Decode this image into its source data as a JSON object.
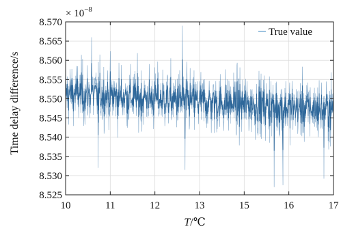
{
  "chart_data": {
    "type": "line",
    "ylabel": "Time delay difference/s",
    "xlabel_italic": "T",
    "xlabel_unit": "/℃",
    "y_multiplier_prefix": "× 10",
    "y_multiplier_exponent": "−8",
    "y_scale": 1e-08,
    "x_tick_labels": [
      "10",
      "11",
      "12",
      "13",
      "15",
      "16",
      "17"
    ],
    "xlim": [
      10,
      17
    ],
    "ylim": [
      8.525,
      8.57
    ],
    "y_ticks": [
      8.525,
      8.53,
      8.535,
      8.54,
      8.545,
      8.55,
      8.555,
      8.56,
      8.565,
      8.57
    ],
    "y_tick_labels": [
      "8.525",
      "8.530",
      "8.535",
      "8.540",
      "8.545",
      "8.550",
      "8.555",
      "8.560",
      "8.565",
      "8.570"
    ],
    "grid": true,
    "legend_position": "top-right",
    "series": [
      {
        "name": "True value",
        "color": "#2f6fa8",
        "trend": {
          "start": 8.5515,
          "end": 8.547
        },
        "envelope_start": {
          "min": 8.535,
          "max": 8.564
        },
        "envelope_end": {
          "min": 8.5325,
          "max": 8.56
        },
        "noise_std": 0.0042,
        "notable_points": [
          {
            "x": 10.68,
            "y": 8.566
          },
          {
            "x": 10.85,
            "y": 8.532
          },
          {
            "x": 13.05,
            "y": 8.569
          },
          {
            "x": 13.12,
            "y": 8.5315
          },
          {
            "x": 15.45,
            "y": 8.527
          },
          {
            "x": 15.68,
            "y": 8.5275
          },
          {
            "x": 16.75,
            "y": 8.5292
          }
        ]
      }
    ]
  }
}
